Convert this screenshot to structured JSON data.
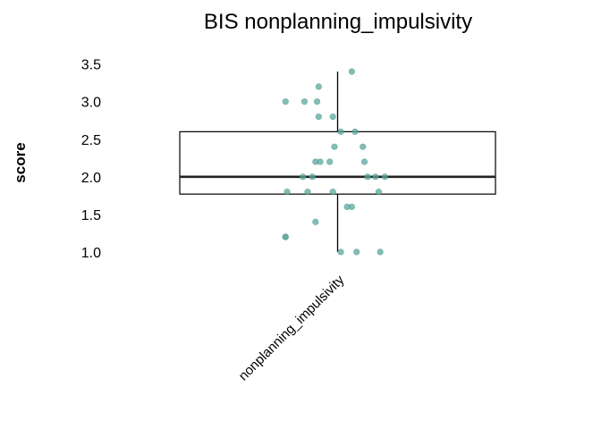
{
  "chart_data": {
    "type": "box",
    "title": "BIS nonplanning_impulsivity",
    "xlabel": "",
    "ylabel": "score",
    "categories": [
      "nonplanning_impulsivity"
    ],
    "yticks": [
      1.0,
      1.5,
      2.0,
      2.5,
      3.0,
      3.5
    ],
    "ytick_labels": [
      "1.0",
      "1.5",
      "2.0",
      "2.5",
      "3.0",
      "3.5"
    ],
    "ylim": [
      0.88,
      3.52
    ],
    "grid": false,
    "legend": "none",
    "box": {
      "min": 1.0,
      "q1": 1.77,
      "median": 2.0,
      "q3": 2.6,
      "max": 3.4
    },
    "points": [
      {
        "x": -0.33,
        "y": 3.0
      },
      {
        "x": -0.21,
        "y": 3.0
      },
      {
        "x": -0.13,
        "y": 3.0
      },
      {
        "x": -0.12,
        "y": 3.2
      },
      {
        "x": 0.09,
        "y": 3.4
      },
      {
        "x": -0.12,
        "y": 2.8
      },
      {
        "x": -0.03,
        "y": 2.8
      },
      {
        "x": 0.02,
        "y": 2.6
      },
      {
        "x": 0.11,
        "y": 2.6
      },
      {
        "x": -0.02,
        "y": 2.4
      },
      {
        "x": 0.16,
        "y": 2.4
      },
      {
        "x": -0.14,
        "y": 2.2
      },
      {
        "x": -0.11,
        "y": 2.2
      },
      {
        "x": -0.05,
        "y": 2.2
      },
      {
        "x": 0.17,
        "y": 2.2
      },
      {
        "x": -0.22,
        "y": 2.0
      },
      {
        "x": -0.16,
        "y": 2.0
      },
      {
        "x": 0.19,
        "y": 2.0
      },
      {
        "x": 0.24,
        "y": 2.0
      },
      {
        "x": 0.3,
        "y": 2.0
      },
      {
        "x": -0.32,
        "y": 1.8
      },
      {
        "x": -0.19,
        "y": 1.8
      },
      {
        "x": -0.03,
        "y": 1.8
      },
      {
        "x": 0.26,
        "y": 1.8
      },
      {
        "x": 0.06,
        "y": 1.6
      },
      {
        "x": 0.09,
        "y": 1.6
      },
      {
        "x": -0.14,
        "y": 1.4
      },
      {
        "x": -0.33,
        "y": 1.2
      },
      {
        "x": -0.33,
        "y": 1.2
      },
      {
        "x": 0.02,
        "y": 1.0
      },
      {
        "x": 0.12,
        "y": 1.0
      },
      {
        "x": 0.27,
        "y": 1.0
      }
    ],
    "point_color": "#5aa89d",
    "box_color": "#000000"
  }
}
